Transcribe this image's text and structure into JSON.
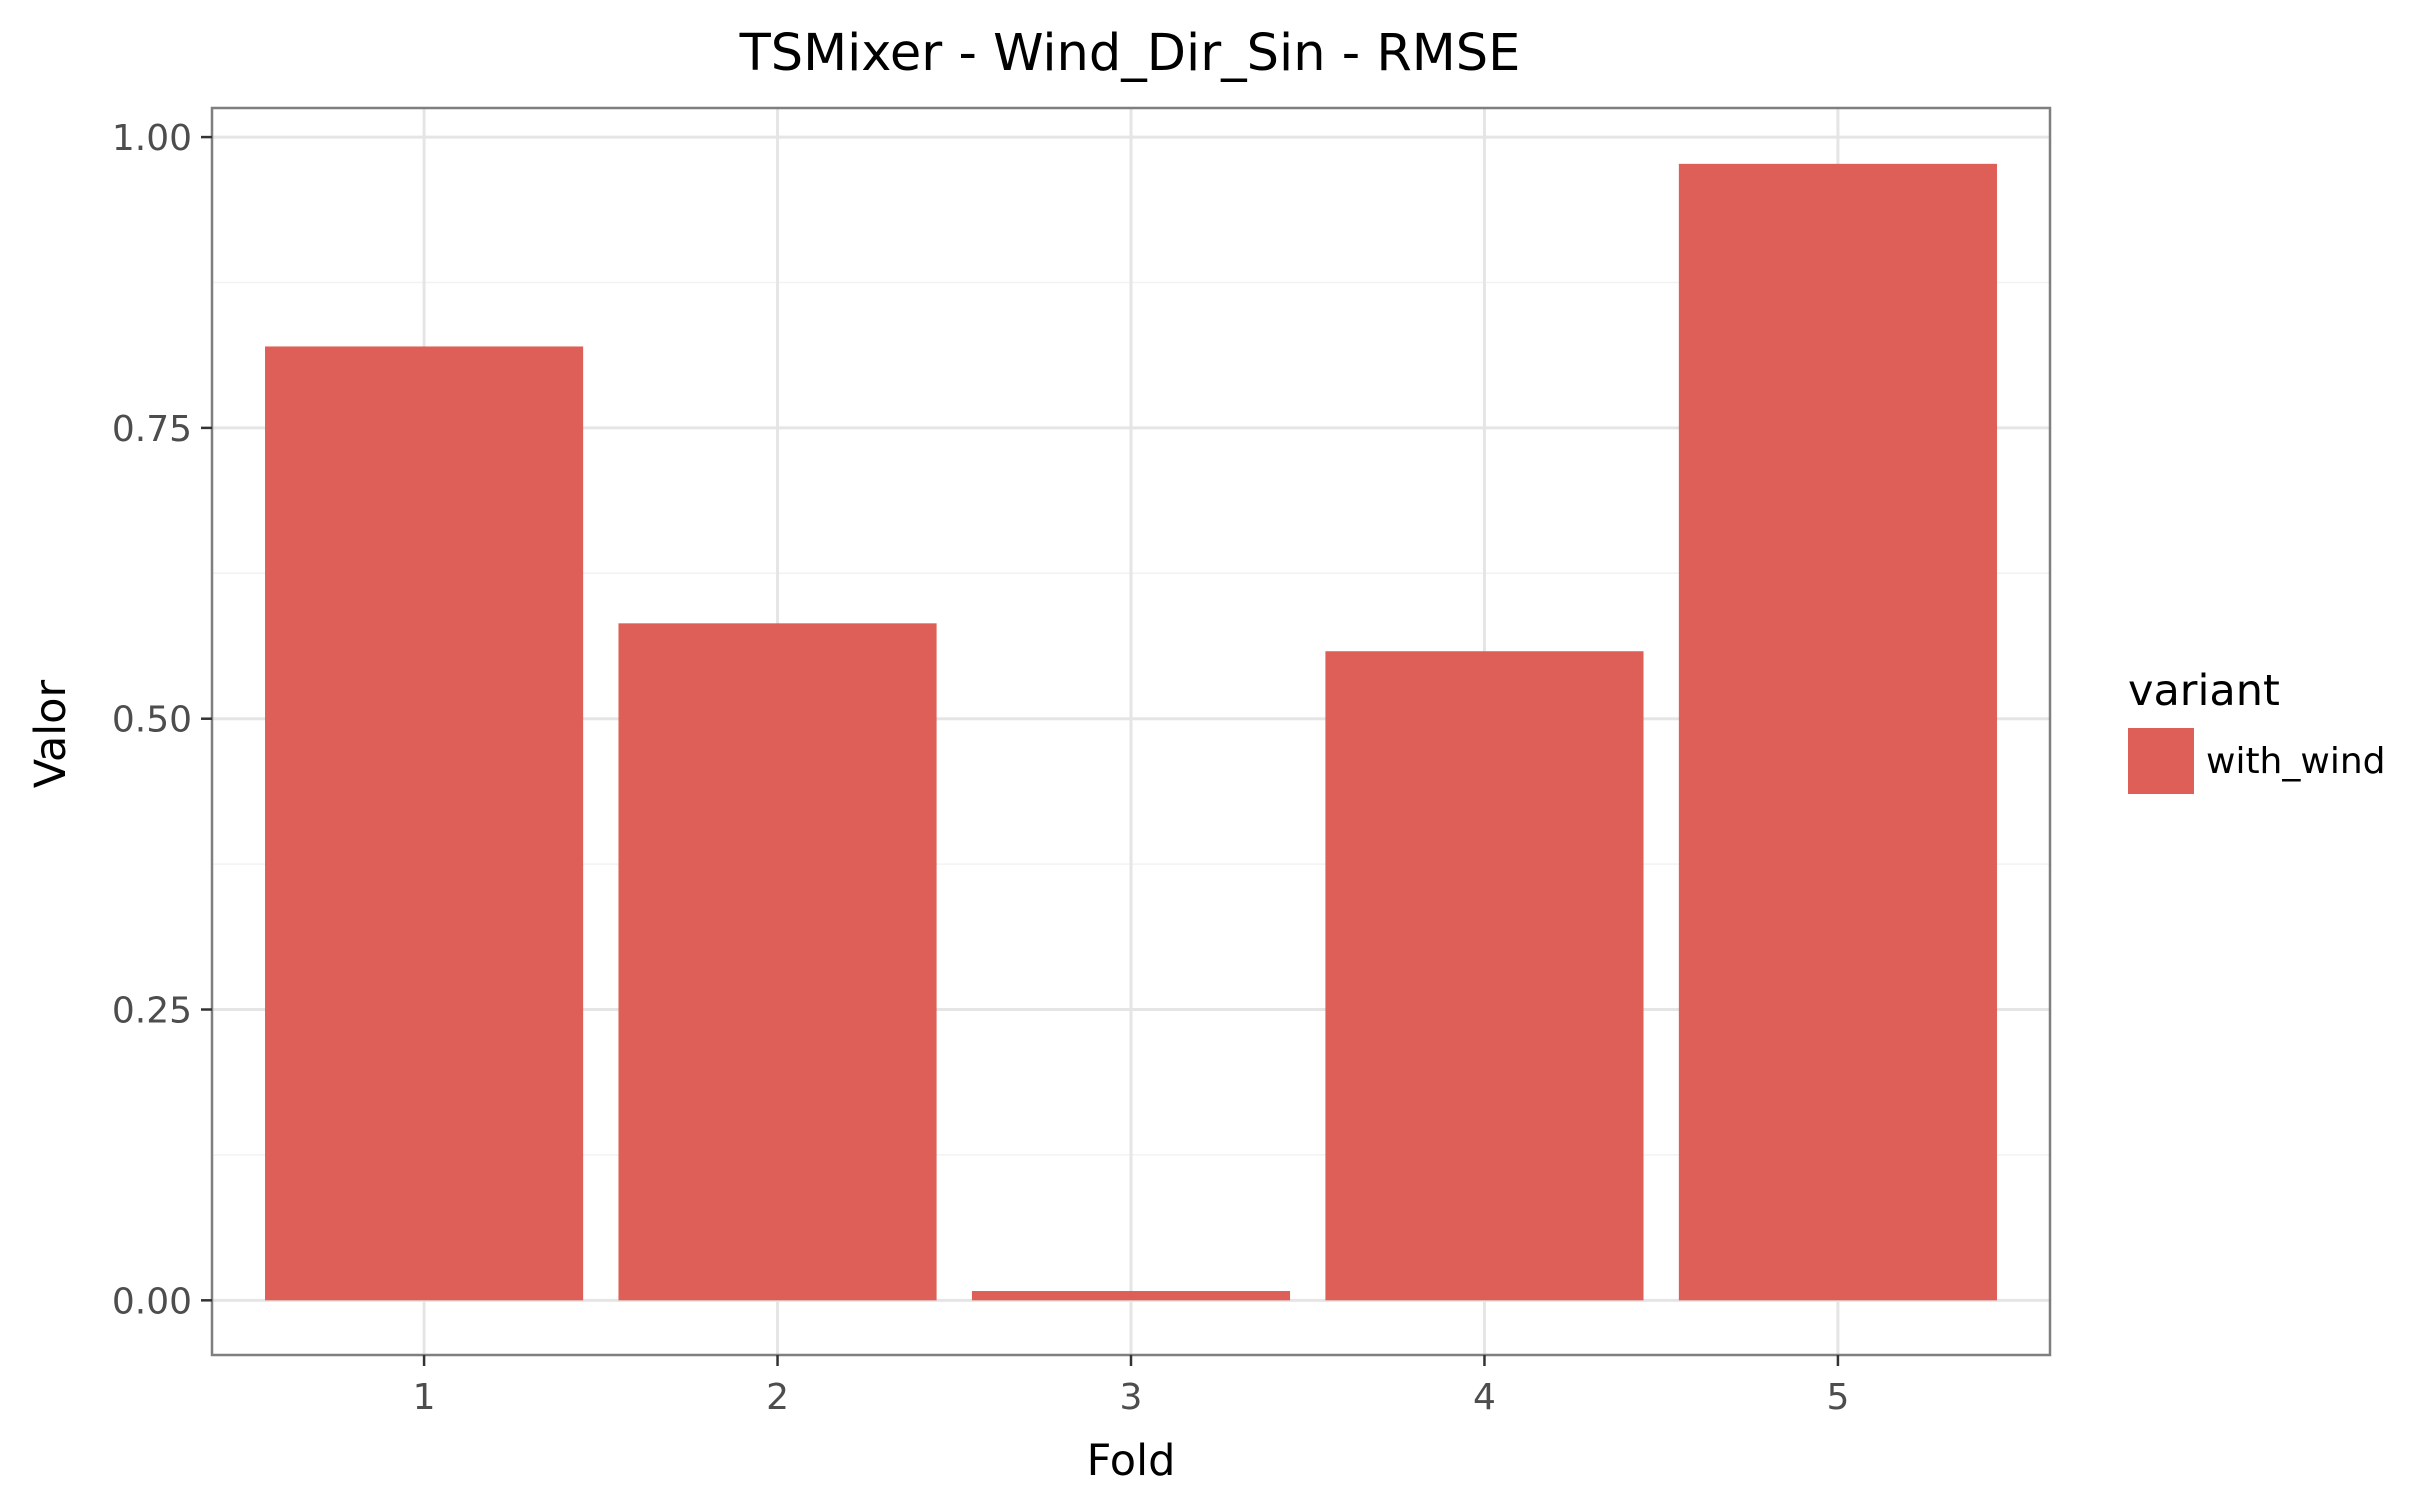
{
  "chart_data": {
    "type": "bar",
    "title": "TSMixer - Wind_Dir_Sin - RMSE",
    "xlabel": "Fold",
    "ylabel": "Valor",
    "categories": [
      "1",
      "2",
      "3",
      "4",
      "5"
    ],
    "series": [
      {
        "name": "with_wind",
        "color": "#dd5f57",
        "values": [
          0.82,
          0.582,
          0.008,
          0.558,
          0.977
        ]
      }
    ],
    "ylim": [
      -0.047,
      1.025
    ],
    "yticks": [
      0.0,
      0.25,
      0.5,
      0.75,
      1.0
    ],
    "ytick_labels": [
      "0.00",
      "0.25",
      "0.50",
      "0.75",
      "1.00"
    ],
    "grid": true,
    "legend": {
      "title": "variant",
      "placement": "right"
    }
  }
}
